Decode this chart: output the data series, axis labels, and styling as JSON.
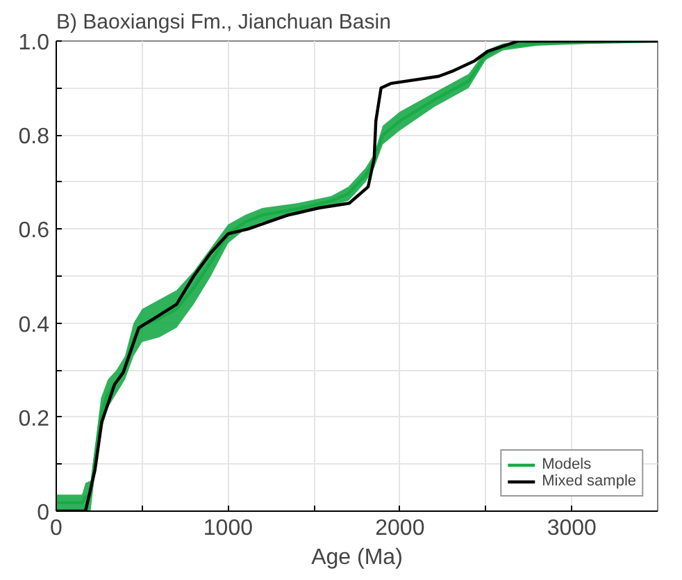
{
  "chart_data": {
    "type": "line",
    "title": "B) Baoxiangsi Fm., Jianchuan Basin",
    "xlabel": "Age (Ma)",
    "xlim": [
      0,
      3500
    ],
    "ylim": [
      0,
      1.0
    ],
    "xticks": [
      0,
      {
        "value": 500,
        "label": null
      },
      1000,
      {
        "value": 1500,
        "label": null
      },
      2000,
      {
        "value": 2500,
        "label": null
      },
      3000
    ],
    "yticks": [
      0,
      {
        "value": 0.1,
        "label": null
      },
      0.2,
      {
        "value": 0.3,
        "label": null
      },
      0.4,
      {
        "value": 0.5,
        "label": null
      },
      0.6,
      {
        "value": 0.7,
        "label": null
      },
      0.8,
      {
        "value": 0.9,
        "label": null
      },
      {
        "value": 1.0,
        "label": "1.0"
      }
    ],
    "grid": true,
    "legend": "bottom right",
    "line_style": "solid",
    "marker": "none",
    "series": [
      {
        "name": "Models",
        "color": "#1aaa48",
        "x": [
          0,
          150,
          170,
          200,
          230,
          260,
          300,
          350,
          400,
          450,
          500,
          600,
          700,
          800,
          900,
          1000,
          1100,
          1200,
          1400,
          1600,
          1700,
          1800,
          1850,
          1900,
          2000,
          2200,
          2400,
          2500,
          2600,
          2800,
          3500
        ],
        "values": [
          0.018,
          0.018,
          0.03,
          0.033,
          0.125,
          0.205,
          0.25,
          0.275,
          0.305,
          0.365,
          0.395,
          0.41,
          0.43,
          0.475,
          0.53,
          0.59,
          0.615,
          0.63,
          0.643,
          0.66,
          0.675,
          0.715,
          0.745,
          0.8,
          0.83,
          0.875,
          0.915,
          0.97,
          0.988,
          0.995,
          1.0
        ],
        "lower": [
          0,
          0,
          0,
          0,
          0.1,
          0.17,
          0.22,
          0.25,
          0.28,
          0.33,
          0.36,
          0.37,
          0.39,
          0.44,
          0.5,
          0.57,
          0.6,
          0.615,
          0.63,
          0.65,
          0.66,
          0.7,
          0.73,
          0.78,
          0.81,
          0.86,
          0.9,
          0.96,
          0.98,
          0.99,
          1.0
        ],
        "upper": [
          0.035,
          0.035,
          0.06,
          0.065,
          0.15,
          0.24,
          0.28,
          0.3,
          0.33,
          0.4,
          0.43,
          0.45,
          0.47,
          0.51,
          0.56,
          0.61,
          0.63,
          0.645,
          0.655,
          0.67,
          0.69,
          0.73,
          0.76,
          0.82,
          0.85,
          0.89,
          0.93,
          0.98,
          0.995,
          1.0,
          1.0
        ]
      },
      {
        "name": "Mixed sample",
        "color": "#000000",
        "x": [
          0,
          170,
          225,
          265,
          340,
          390,
          480,
          570,
          700,
          800,
          900,
          1000,
          1115,
          1350,
          1530,
          1705,
          1815,
          1850,
          1860,
          1890,
          1950,
          2225,
          2300,
          2435,
          2510,
          2690,
          3500
        ],
        "values": [
          0,
          0,
          0.087,
          0.19,
          0.27,
          0.295,
          0.39,
          0.41,
          0.44,
          0.5,
          0.55,
          0.59,
          0.6,
          0.63,
          0.645,
          0.655,
          0.69,
          0.75,
          0.83,
          0.9,
          0.91,
          0.925,
          0.935,
          0.958,
          0.978,
          1.0,
          1.0
        ]
      }
    ]
  }
}
